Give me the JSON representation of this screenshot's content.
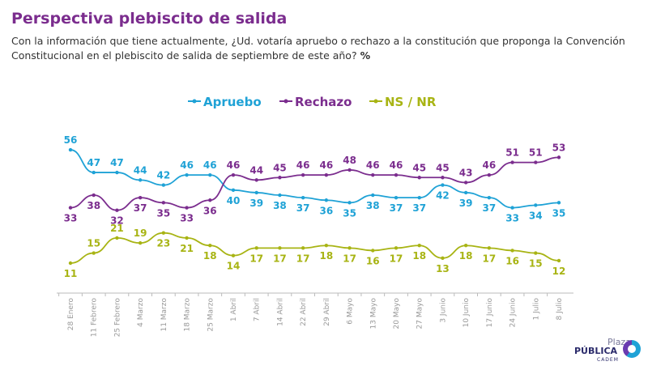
{
  "header": {
    "title": "Perspectiva plebiscito de salida",
    "subtitle": "Con la información que tiene actualmente, ¿Ud. votaría apruebo o rechazo a la constitución que proponga la Convención Constitucional en el plebiscito de salida de septiembre de este año?",
    "subtitle_unit": "%"
  },
  "logo": {
    "line1": "Plaza",
    "line2": "PÚBLICA",
    "line3": "CADEM"
  },
  "chart_data": {
    "type": "line",
    "title": "Perspectiva plebiscito de salida",
    "ylabel": "%",
    "ylim": [
      11,
      56
    ],
    "grid": false,
    "legend": "top-center",
    "categories": [
      "28 Enero",
      "11 Febrero",
      "25 Febrero",
      "4 Marzo",
      "11 Marzo",
      "18 Marzo",
      "25 Marzo",
      "1 Abril",
      "7 Abril",
      "14 Abril",
      "22 Abril",
      "29 Abril",
      "6 Mayo",
      "13 Mayo",
      "20 Mayo",
      "27 Mayo",
      "3 Junio",
      "10 Junio",
      "17 Junio",
      "24 Junio",
      "1 Julio",
      "8 Julio"
    ],
    "series": [
      {
        "name": "Apruebo",
        "color": "#1fa2d6",
        "values": [
          56,
          47,
          47,
          44,
          42,
          46,
          46,
          40,
          39,
          38,
          37,
          36,
          35,
          38,
          37,
          37,
          42,
          39,
          37,
          33,
          34,
          35
        ]
      },
      {
        "name": "Rechazo",
        "color": "#7b2d8e",
        "values": [
          33,
          38,
          32,
          37,
          35,
          33,
          36,
          46,
          44,
          45,
          46,
          46,
          48,
          46,
          46,
          45,
          45,
          43,
          46,
          51,
          51,
          53
        ]
      },
      {
        "name": "NS / NR",
        "color": "#a8b414",
        "values": [
          11,
          15,
          21,
          19,
          23,
          21,
          18,
          14,
          17,
          17,
          17,
          18,
          17,
          16,
          17,
          18,
          13,
          18,
          17,
          16,
          15,
          12
        ]
      }
    ]
  }
}
